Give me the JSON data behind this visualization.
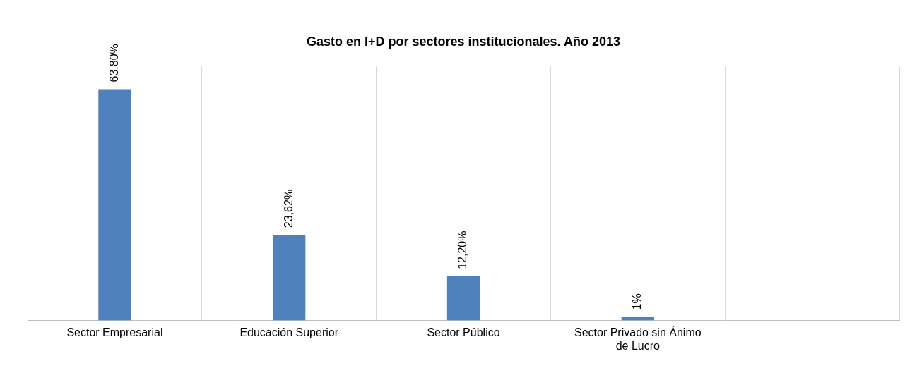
{
  "chart_data": {
    "type": "bar",
    "title": "Gasto en I+D por sectores institucionales. Año 2013",
    "categories": [
      "Sector Empresarial",
      "Educación Superior",
      "Sector Público",
      "Sector Privado sin Ánimo de Lucro",
      null
    ],
    "values": [
      63.8,
      23.62,
      12.2,
      1,
      null
    ],
    "value_labels": [
      "63,80%",
      "23,62%",
      "12,20%",
      "1%",
      null
    ],
    "color": "#4f81bd",
    "grid": "x"
  }
}
